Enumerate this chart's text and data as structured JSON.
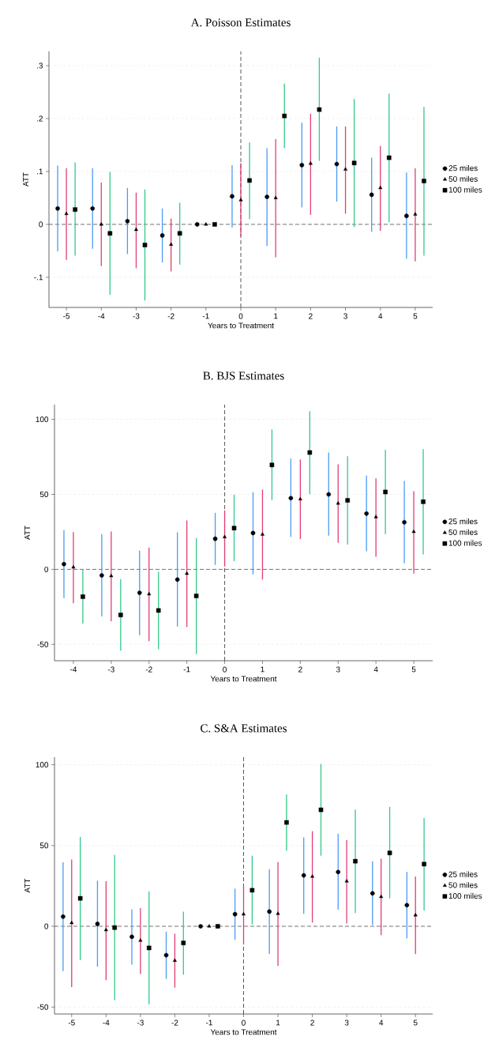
{
  "chart_data": [
    {
      "type": "scatter",
      "title": "A. Poisson Estimates",
      "xlabel": "Years to Treatment",
      "ylabel": "ATT",
      "xlim": [
        -5.5,
        5.5
      ],
      "ylim": [
        -0.157,
        0.327
      ],
      "xticks": [
        -5,
        -4,
        -3,
        -2,
        -1,
        0,
        1,
        2,
        3,
        4,
        5
      ],
      "yticks": [
        {
          "value": -0.1,
          "label": "-.1"
        },
        0,
        {
          "value": 0.1,
          "label": ".1"
        },
        {
          "value": 0.2,
          "label": ".2"
        },
        {
          "value": 0.3,
          "label": ".3"
        }
      ],
      "grid": "y",
      "legend": "right",
      "ref_lines": [
        {
          "axis": "y",
          "value": 0,
          "color": "#666666",
          "line_style": "dashed"
        },
        {
          "axis": "x",
          "value": 0,
          "color": "#444444",
          "line_style": "dashed"
        }
      ],
      "series": [
        {
          "name": "25 miles",
          "color": "#000000",
          "marker": "circle",
          "x": [
            -5.25,
            -4.25,
            -3.25,
            -2.25,
            -1.25,
            -0.25,
            0.75,
            1.75,
            2.75,
            3.75,
            4.75
          ],
          "values": [
            0.03,
            0.03,
            0.006,
            -0.021,
            0,
            0.053,
            0.052,
            0.112,
            0.114,
            0.056,
            0.016
          ],
          "errors": [
            [
              -0.051,
              0.111
            ],
            [
              -0.046,
              0.106
            ],
            [
              -0.056,
              0.069
            ],
            [
              -0.072,
              0.03
            ],
            null,
            [
              -0.006,
              0.112
            ],
            [
              -0.041,
              0.144
            ],
            [
              0.032,
              0.192
            ],
            [
              0.043,
              0.185
            ],
            [
              -0.014,
              0.126
            ],
            [
              -0.065,
              0.098
            ]
          ]
        },
        {
          "name": "50 miles",
          "color": "#000000",
          "marker": "triangle",
          "x": [
            -5,
            -4,
            -3,
            -2,
            -1,
            0,
            1,
            2,
            3,
            4,
            5
          ],
          "values": [
            0.02,
            0,
            -0.01,
            -0.038,
            0,
            0.046,
            0.05,
            0.115,
            0.104,
            0.069,
            0.019
          ],
          "errors": [
            [
              -0.067,
              0.106
            ],
            [
              -0.079,
              0.079
            ],
            [
              -0.083,
              0.06
            ],
            [
              -0.089,
              0.011
            ],
            null,
            [
              -0.023,
              0.116
            ],
            [
              -0.062,
              0.161
            ],
            [
              0.018,
              0.209
            ],
            [
              0.02,
              0.185
            ],
            [
              -0.012,
              0.148
            ],
            [
              -0.07,
              0.106
            ]
          ]
        },
        {
          "name": "100 miles",
          "color": "#000000",
          "marker": "square",
          "x": [
            -4.75,
            -3.75,
            -2.75,
            -1.75,
            -0.75,
            0.25,
            1.25,
            2.25,
            3.25,
            4.25,
            5.25
          ],
          "values": [
            0.028,
            -0.017,
            -0.039,
            -0.017,
            0,
            0.083,
            0.205,
            0.217,
            0.116,
            0.126,
            0.082
          ],
          "errors": [
            [
              -0.059,
              0.117
            ],
            [
              -0.133,
              0.099
            ],
            [
              -0.144,
              0.066
            ],
            [
              -0.076,
              0.041
            ],
            null,
            [
              0.01,
              0.155
            ],
            [
              0.144,
              0.266
            ],
            [
              0.12,
              0.315
            ],
            [
              -0.005,
              0.237
            ],
            [
              0.004,
              0.247
            ],
            [
              -0.059,
              0.222
            ]
          ]
        }
      ]
    },
    {
      "type": "scatter",
      "title": "B. BJS Estimates",
      "xlabel": "Years to Treatment",
      "ylabel": "ATT",
      "xlim": [
        -4.5,
        5.5
      ],
      "ylim": [
        -60.9,
        109.8
      ],
      "xticks": [
        -4,
        -3,
        -2,
        -1,
        0,
        1,
        2,
        3,
        4,
        5
      ],
      "yticks": [
        -50,
        0,
        50,
        100
      ],
      "grid": "y",
      "legend": "right",
      "ref_lines": [
        {
          "axis": "y",
          "value": 0,
          "color": "#666666",
          "line_style": "dashed"
        },
        {
          "axis": "x",
          "value": 0,
          "color": "#444444",
          "line_style": "dashed"
        }
      ],
      "series": [
        {
          "name": "25 miles",
          "color": "#000000",
          "marker": "circle",
          "x": [
            -4.25,
            -3.25,
            -2.25,
            -1.25,
            -0.25,
            0.75,
            1.75,
            2.75,
            3.75,
            4.75
          ],
          "values": [
            3.5,
            -4.0,
            -15.6,
            -6.8,
            20.4,
            24.2,
            47.5,
            50.0,
            37.2,
            31.4
          ],
          "errors": [
            [
              -19.1,
              26.1
            ],
            [
              -31.4,
              23.5
            ],
            [
              -43.9,
              12.5
            ],
            [
              -38.1,
              24.7
            ],
            [
              3.0,
              37.7
            ],
            [
              -3.3,
              51.4
            ],
            [
              21.6,
              73.9
            ],
            [
              22.5,
              77.9
            ],
            [
              12.1,
              62.5
            ],
            [
              4.0,
              58.9
            ]
          ]
        },
        {
          "name": "50 miles",
          "color": "#000000",
          "marker": "triangle",
          "x": [
            -4,
            -3,
            -2,
            -1,
            0,
            1,
            2,
            3,
            4,
            5
          ],
          "values": [
            1.4,
            -4.4,
            -16.5,
            -2.8,
            21.6,
            23.3,
            46.8,
            44.0,
            34.9,
            25.1
          ],
          "errors": [
            [
              -22.6,
              24.9
            ],
            [
              -34.6,
              25.3
            ],
            [
              -47.9,
              14.6
            ],
            [
              -38.4,
              32.6
            ],
            [
              1.9,
              39.3
            ],
            [
              -6.8,
              53.2
            ],
            [
              20.2,
              73.2
            ],
            [
              17.7,
              70.0
            ],
            [
              8.4,
              60.7
            ],
            [
              -2.8,
              52.1
            ]
          ]
        },
        {
          "name": "100 miles",
          "color": "#000000",
          "marker": "square",
          "x": [
            -3.75,
            -2.75,
            -1.75,
            -0.75,
            0.25,
            1.25,
            2.25,
            3.25,
            4.25,
            5.25
          ],
          "values": [
            -18.2,
            -30.4,
            -27.4,
            -17.7,
            27.5,
            69.6,
            77.9,
            46.0,
            51.6,
            45.1
          ],
          "errors": [
            [
              -36.1,
              0
            ],
            [
              -54.2,
              -6.5
            ],
            [
              -53.3,
              -1.6
            ],
            [
              -56.5,
              20.9
            ],
            [
              5.4,
              49.8
            ],
            [
              46.1,
              93.3
            ],
            [
              50.2,
              105.4
            ],
            [
              16.5,
              75.4
            ],
            [
              23.5,
              79.6
            ],
            [
              10.0,
              80.2
            ]
          ]
        }
      ]
    },
    {
      "type": "scatter",
      "title": "C. S&A Estimates",
      "xlabel": "Years to Treatment",
      "ylabel": "ATT",
      "xlim": [
        -5.5,
        5.5
      ],
      "ylim": [
        -54.3,
        104.7
      ],
      "xticks": [
        -5,
        -4,
        -3,
        -2,
        -1,
        0,
        1,
        2,
        3,
        4,
        5
      ],
      "yticks": [
        -50,
        0,
        50,
        100
      ],
      "grid": "y",
      "legend": "right",
      "ref_lines": [
        {
          "axis": "y",
          "value": 0,
          "color": "#666666",
          "line_style": "dashed"
        },
        {
          "axis": "x",
          "value": 0,
          "color": "#444444",
          "line_style": "dashed"
        }
      ],
      "series": [
        {
          "name": "25 miles",
          "color": "#000000",
          "marker": "circle",
          "x": [
            -5.25,
            -4.25,
            -3.25,
            -2.25,
            -1.25,
            -0.25,
            0.75,
            1.75,
            2.75,
            3.75,
            4.75
          ],
          "values": [
            6.0,
            1.5,
            -6.5,
            -17.9,
            0,
            7.5,
            9.1,
            31.5,
            33.6,
            20.4,
            13.1
          ],
          "errors": [
            [
              -27.7,
              39.6
            ],
            [
              -25.0,
              28.2
            ],
            [
              -23.7,
              10.4
            ],
            [
              -32.6,
              -3.3
            ],
            null,
            [
              -8.3,
              23.3
            ],
            [
              -17.1,
              35.4
            ],
            [
              7.7,
              55.1
            ],
            [
              10.3,
              57.3
            ],
            [
              0.8,
              40.3
            ],
            [
              -7.5,
              33.6
            ]
          ]
        },
        {
          "name": "50 miles",
          "color": "#000000",
          "marker": "triangle",
          "x": [
            -5,
            -4,
            -3,
            -2,
            -1,
            0,
            1,
            2,
            3,
            4,
            5
          ],
          "values": [
            2.1,
            -2.3,
            -8.8,
            -21.2,
            0,
            7.5,
            7.8,
            30.8,
            27.9,
            18.3,
            6.9
          ],
          "errors": [
            [
              -37.7,
              41.3
            ],
            [
              -33.4,
              27.9
            ],
            [
              -29.5,
              11.3
            ],
            [
              -38.0,
              -4.6
            ],
            null,
            [
              -10.3,
              25.1
            ],
            [
              -24.5,
              39.8
            ],
            [
              2.3,
              58.9
            ],
            [
              1.8,
              53.3
            ],
            [
              -5.5,
              41.8
            ],
            [
              -17.3,
              30.8
            ]
          ]
        },
        {
          "name": "100 miles",
          "color": "#000000",
          "marker": "square",
          "x": [
            -4.75,
            -3.75,
            -2.75,
            -1.75,
            -0.75,
            0.25,
            1.25,
            2.25,
            3.25,
            4.25,
            5.25
          ],
          "values": [
            17.3,
            -0.8,
            -13.4,
            -10.3,
            0,
            22.3,
            64.3,
            72.1,
            40.3,
            45.4,
            38.5
          ],
          "errors": [
            [
              -20.9,
              55.3
            ],
            [
              -45.7,
              44.2
            ],
            [
              -48.3,
              21.7
            ],
            [
              -30.0,
              9.1
            ],
            null,
            [
              1.1,
              43.7
            ],
            [
              46.7,
              81.6
            ],
            [
              43.7,
              100.5
            ],
            [
              8.2,
              72.3
            ],
            [
              17.3,
              73.9
            ],
            [
              9.8,
              67.0
            ]
          ]
        }
      ]
    }
  ]
}
